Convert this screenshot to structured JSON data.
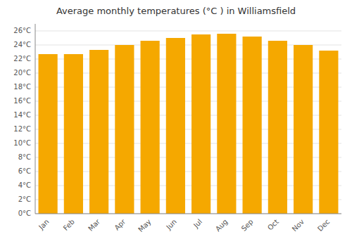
{
  "chart_data": {
    "type": "bar",
    "title": "Average monthly temperatures (°C ) in Williamsfield",
    "categories": [
      "Jan",
      "Feb",
      "Mar",
      "Apr",
      "May",
      "Jun",
      "Jul",
      "Aug",
      "Sep",
      "Oct",
      "Nov",
      "Dec"
    ],
    "values": [
      22.7,
      22.7,
      23.3,
      24.0,
      24.6,
      25.0,
      25.5,
      25.6,
      25.2,
      24.6,
      24.0,
      23.2
    ],
    "color": "#F5A800",
    "ylim": [
      0,
      27
    ],
    "yticks": [
      {
        "value": 0,
        "label": "0°C"
      },
      {
        "value": 2,
        "label": "2°C"
      },
      {
        "value": 4,
        "label": "4°C"
      },
      {
        "value": 6,
        "label": "6°C"
      },
      {
        "value": 8,
        "label": "8°C"
      },
      {
        "value": 10,
        "label": "10°C"
      },
      {
        "value": 12,
        "label": "12°C"
      },
      {
        "value": 14,
        "label": "14°C"
      },
      {
        "value": 16,
        "label": "16°C"
      },
      {
        "value": 18,
        "label": "18°C"
      },
      {
        "value": 20,
        "label": "20°C"
      },
      {
        "value": 22,
        "label": "22°C"
      },
      {
        "value": 24,
        "label": "24°C"
      },
      {
        "value": 26,
        "label": "26°C"
      }
    ],
    "grid": true
  }
}
